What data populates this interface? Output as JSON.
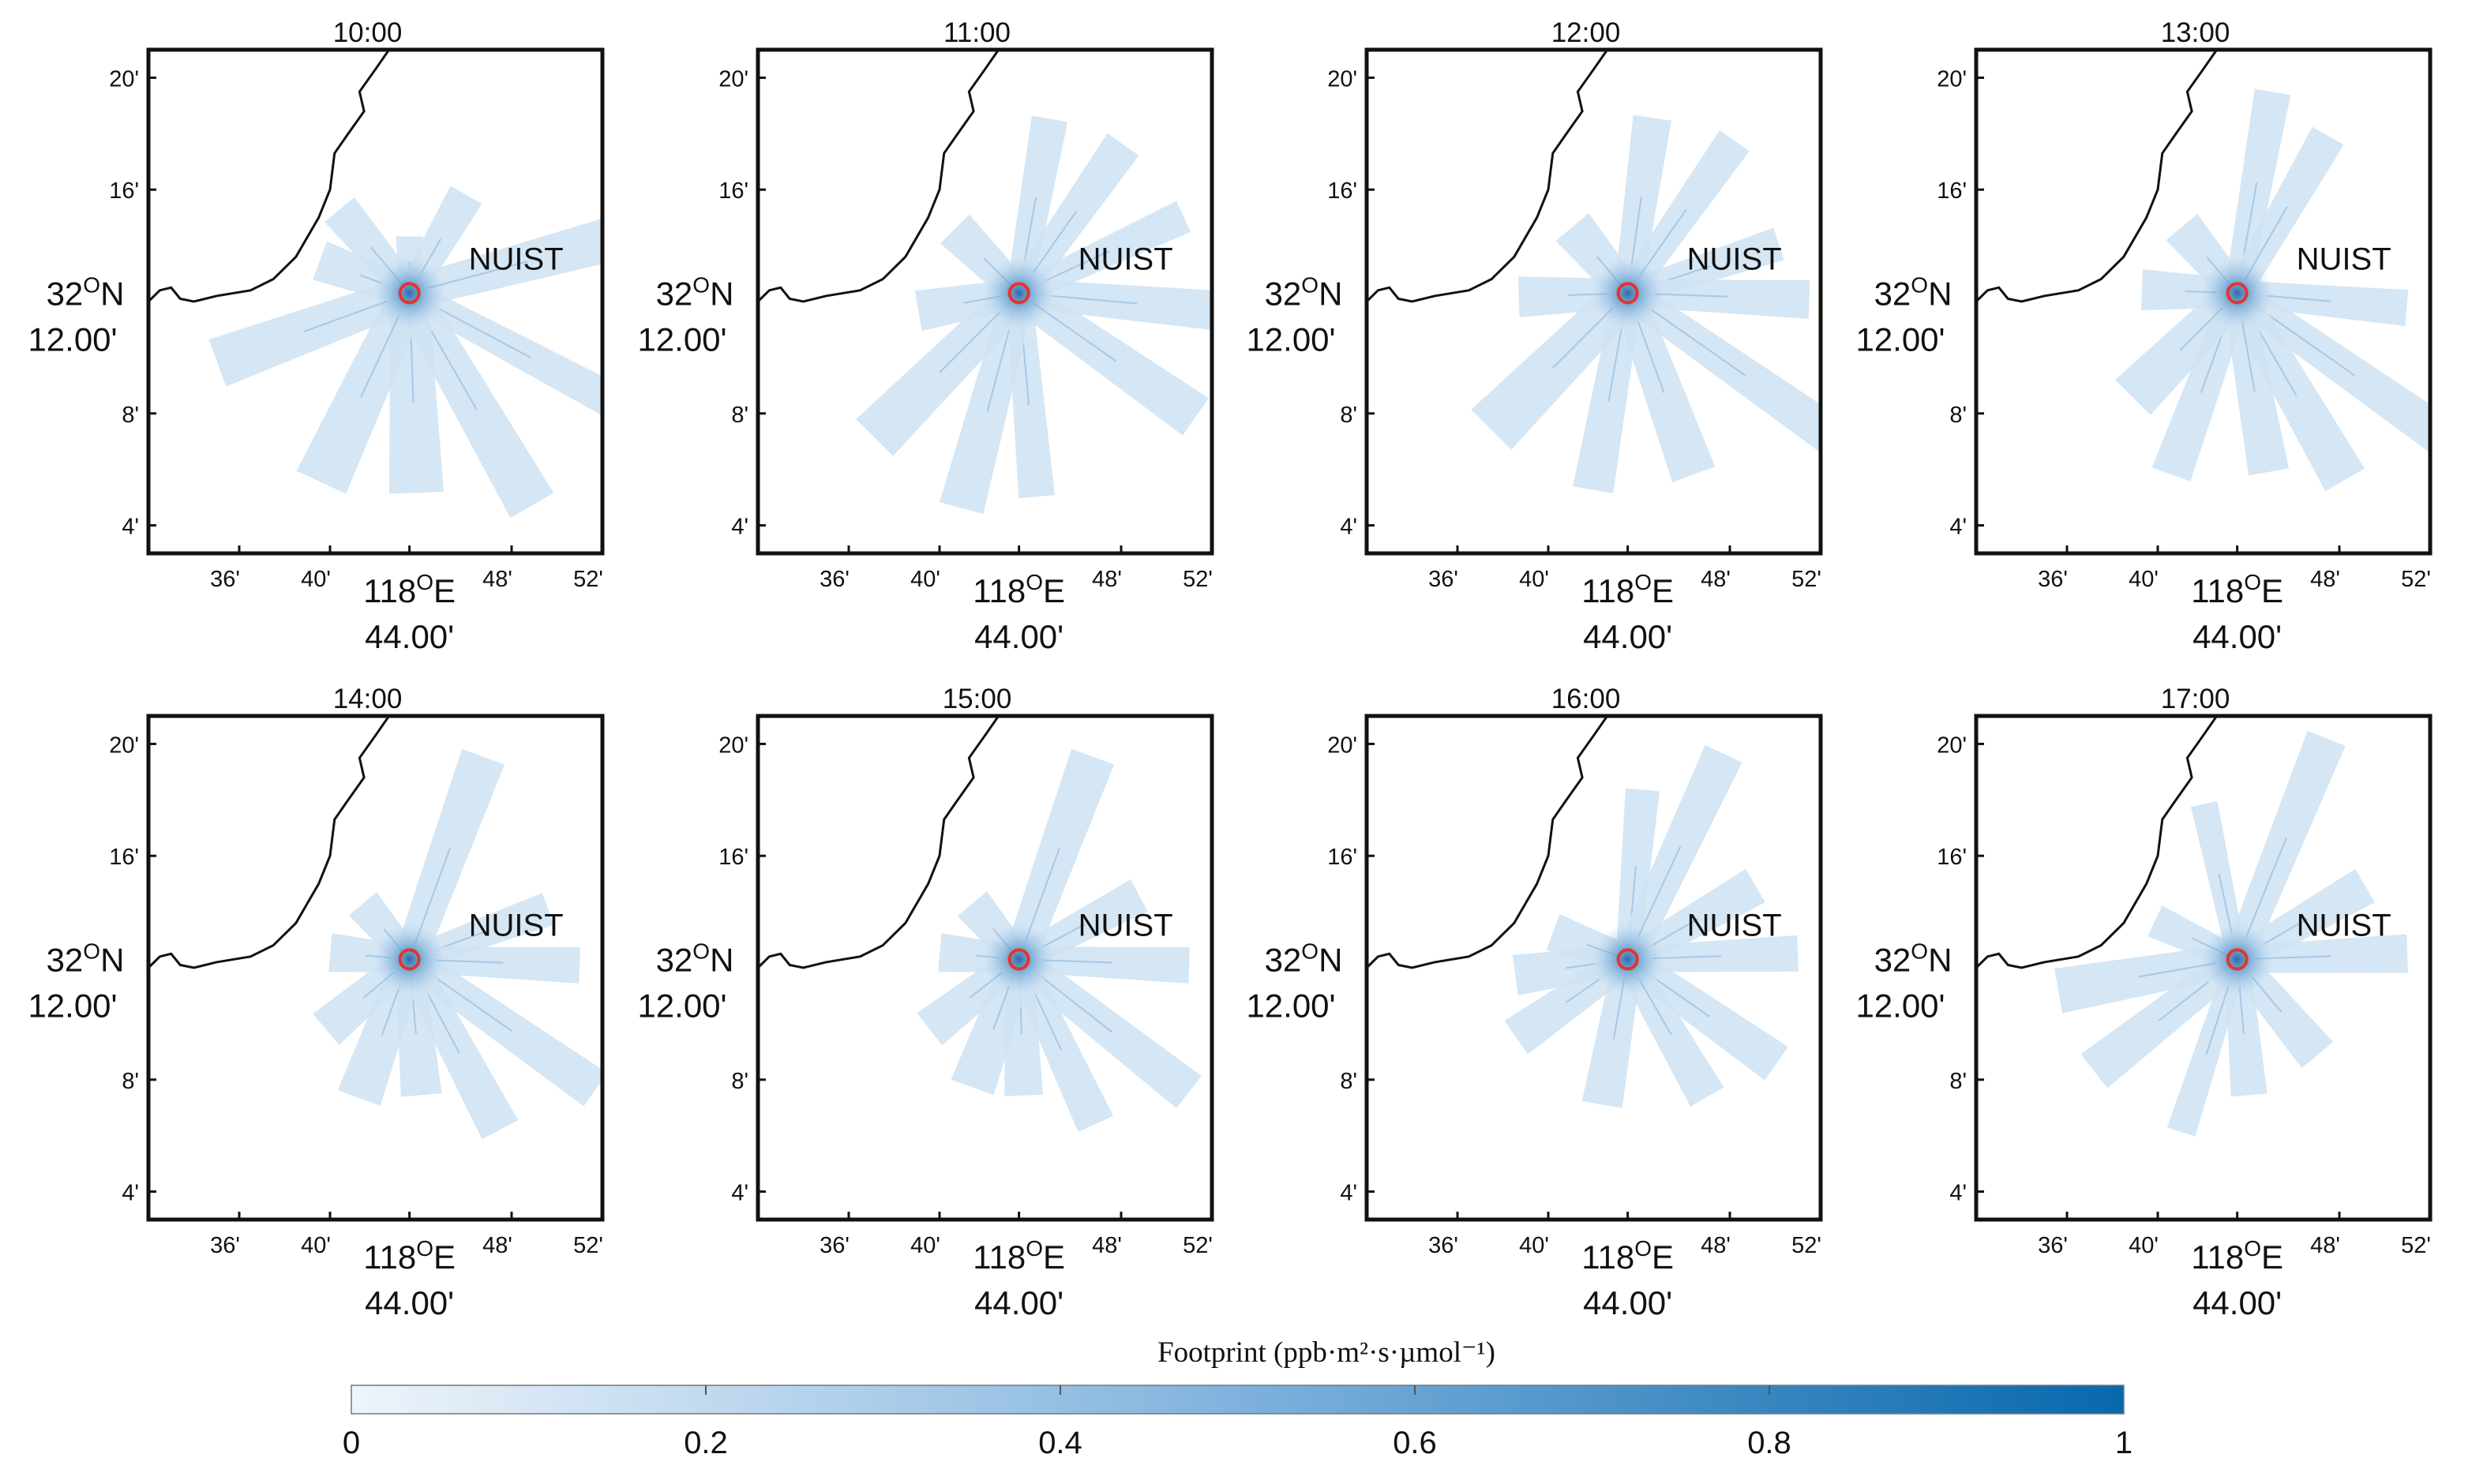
{
  "chart_data": {
    "type": "heatmap",
    "description_units": "footprint maps of NUIST station, longitude 118E (arc-minutes), latitude 32N (arc-minutes)",
    "colorbar": {
      "title": "Footprint (ppb·m²·s·µmol⁻¹)",
      "range": [
        0,
        1
      ],
      "ticks": [
        "0",
        "0.2",
        "0.4",
        "0.6",
        "0.8",
        "1"
      ],
      "colors": [
        "#eef4fb",
        "#0868ac"
      ]
    },
    "shared": {
      "site_label": "NUIST",
      "site_lon_min": 43.5,
      "site_lat_min": 12.3,
      "xlim": [
        32,
        52
      ],
      "ylim": [
        3,
        21
      ],
      "x_ticks": [
        "36'",
        "40'",
        "48'",
        "52'"
      ],
      "x_tick_values": [
        36,
        40,
        48,
        52
      ],
      "x_center_label_1": "118°E",
      "x_center_label_2": "44.00'",
      "y_ticks": [
        "20'",
        "16'",
        "8'",
        "4'"
      ],
      "y_tick_values": [
        20,
        16,
        8,
        4
      ],
      "y_center_label_1": "32°N",
      "y_center_label_2": "12.00'",
      "coastline": [
        [
          32,
          12.0
        ],
        [
          32.5,
          12.4
        ],
        [
          33,
          12.5
        ],
        [
          33.4,
          12.1
        ],
        [
          34,
          12.0
        ],
        [
          35,
          12.2
        ],
        [
          36.5,
          12.4
        ],
        [
          37.5,
          12.8
        ],
        [
          38.5,
          13.6
        ],
        [
          39.5,
          15.0
        ],
        [
          40,
          16.0
        ],
        [
          40.2,
          17.3
        ],
        [
          40.8,
          18.0
        ],
        [
          41.5,
          18.8
        ],
        [
          41.3,
          19.5
        ],
        [
          42,
          20.3
        ],
        [
          42.6,
          21
        ]
      ],
      "footprint_color": "#cfe2f3",
      "site_marker_color": "#e8322b"
    },
    "panels": [
      {
        "time": "10:00",
        "plumes": [
          [
            0,
            2.5,
            1.2
          ],
          [
            30,
            5.0,
            1.6
          ],
          [
            75,
            9.8,
            2.0
          ],
          [
            118,
            11.0,
            1.6
          ],
          [
            150,
            10.8,
            2.2
          ],
          [
            178,
            8.8,
            2.4
          ],
          [
            205,
            9.2,
            2.4
          ],
          [
            250,
            9.0,
            2.2
          ],
          [
            290,
            4.2,
            1.8
          ],
          [
            320,
            4.8,
            1.7
          ]
        ]
      },
      {
        "time": "11:00",
        "plumes": [
          [
            10,
            7.8,
            1.6
          ],
          [
            35,
            8.0,
            1.7
          ],
          [
            65,
            8.0,
            1.5
          ],
          [
            95,
            9.5,
            1.8
          ],
          [
            125,
            9.5,
            2.0
          ],
          [
            175,
            9.0,
            1.6
          ],
          [
            195,
            9.8,
            2.0
          ],
          [
            225,
            9.0,
            2.3
          ],
          [
            260,
            4.5,
            1.8
          ],
          [
            315,
            4.0,
            1.8
          ]
        ]
      },
      {
        "time": "12:00",
        "plumes": [
          [
            8,
            7.8,
            1.7
          ],
          [
            35,
            8.2,
            1.6
          ],
          [
            72,
            7.0,
            1.5
          ],
          [
            92,
            8.0,
            1.7
          ],
          [
            125,
            11.5,
            1.8
          ],
          [
            160,
            8.5,
            2.0
          ],
          [
            190,
            8.8,
            1.8
          ],
          [
            225,
            8.5,
            2.5
          ],
          [
            268,
            4.8,
            1.8
          ],
          [
            320,
            3.8,
            1.9
          ]
        ]
      },
      {
        "time": "13:00",
        "plumes": [
          [
            10,
            9.0,
            1.6
          ],
          [
            30,
            8.0,
            1.6
          ],
          [
            95,
            7.5,
            1.6
          ],
          [
            125,
            11.5,
            1.8
          ],
          [
            150,
            9.5,
            2.0
          ],
          [
            170,
            8.0,
            1.8
          ],
          [
            200,
            8.5,
            1.8
          ],
          [
            225,
            6.5,
            2.2
          ],
          [
            272,
            4.2,
            1.8
          ],
          [
            320,
            3.8,
            1.8
          ]
        ]
      },
      {
        "time": "14:00",
        "plumes": [
          [
            20,
            9.5,
            2.0
          ],
          [
            70,
            6.5,
            1.5
          ],
          [
            92,
            7.5,
            1.6
          ],
          [
            125,
            10.0,
            1.8
          ],
          [
            152,
            8.5,
            1.8
          ],
          [
            175,
            6.0,
            1.8
          ],
          [
            200,
            6.5,
            2.0
          ],
          [
            230,
            4.8,
            1.8
          ],
          [
            275,
            3.5,
            1.7
          ],
          [
            320,
            3.2,
            1.6
          ]
        ]
      },
      {
        "time": "15:00",
        "plumes": [
          [
            20,
            9.5,
            2.0
          ],
          [
            62,
            6.0,
            1.6
          ],
          [
            92,
            7.5,
            1.6
          ],
          [
            128,
            9.5,
            1.8
          ],
          [
            155,
            8.0,
            1.7
          ],
          [
            178,
            6.0,
            1.7
          ],
          [
            200,
            6.0,
            2.0
          ],
          [
            232,
            5.0,
            1.8
          ],
          [
            275,
            3.5,
            1.7
          ],
          [
            320,
            3.2,
            1.7
          ]
        ]
      },
      {
        "time": "16:00",
        "plumes": [
          [
            5,
            7.5,
            1.5
          ],
          [
            25,
            10.0,
            1.8
          ],
          [
            60,
            6.5,
            1.7
          ],
          [
            88,
            7.5,
            1.6
          ],
          [
            125,
            8.0,
            1.8
          ],
          [
            150,
            7.0,
            1.7
          ],
          [
            190,
            6.5,
            1.8
          ],
          [
            235,
            6.0,
            1.8
          ],
          [
            262,
            5.0,
            1.8
          ],
          [
            290,
            3.5,
            1.7
          ]
        ]
      },
      {
        "time": "17:00",
        "plumes": [
          [
            -12,
            7.0,
            1.2
          ],
          [
            22,
            10.5,
            1.8
          ],
          [
            60,
            6.5,
            1.7
          ],
          [
            88,
            7.5,
            1.7
          ],
          [
            140,
            5.5,
            1.8
          ],
          [
            175,
            6.0,
            1.6
          ],
          [
            198,
            8.0,
            1.3
          ],
          [
            232,
            8.0,
            1.9
          ],
          [
            260,
            8.0,
            2.0
          ],
          [
            295,
            4.0,
            1.5
          ]
        ]
      }
    ]
  }
}
